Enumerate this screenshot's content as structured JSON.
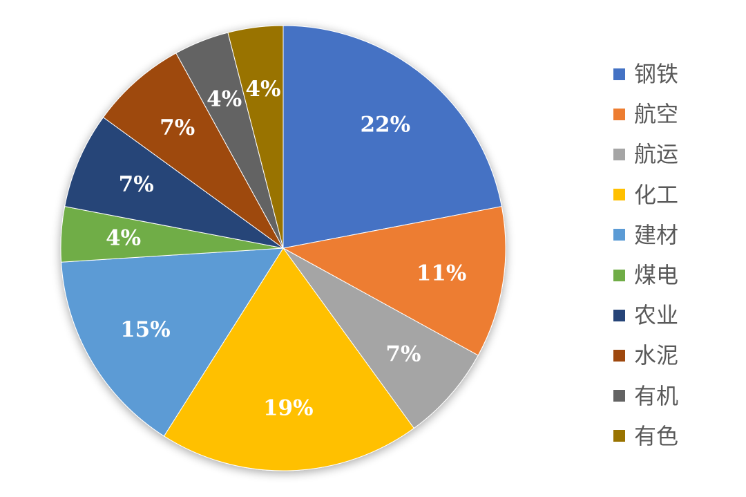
{
  "chart_data": {
    "type": "pie",
    "title": "",
    "legend_position": "right",
    "slices": [
      {
        "label": "钢铁",
        "value": 22,
        "display": "22%",
        "color": "#4472C4"
      },
      {
        "label": "航空",
        "value": 11,
        "display": "11%",
        "color": "#ED7D31"
      },
      {
        "label": "航运",
        "value": 7,
        "display": "7%",
        "color": "#A5A5A5"
      },
      {
        "label": "化工",
        "value": 19,
        "display": "19%",
        "color": "#FFC000"
      },
      {
        "label": "建材",
        "value": 15,
        "display": "15%",
        "color": "#5B9BD5"
      },
      {
        "label": "煤电",
        "value": 4,
        "display": "4%",
        "color": "#70AD47"
      },
      {
        "label": "农业",
        "value": 7,
        "display": "7%",
        "color": "#264478"
      },
      {
        "label": "水泥",
        "value": 7,
        "display": "7%",
        "color": "#9E480E"
      },
      {
        "label": "有机",
        "value": 4,
        "display": "4%",
        "color": "#636363"
      },
      {
        "label": "有色",
        "value": 4,
        "display": "4%",
        "color": "#997300"
      }
    ]
  }
}
